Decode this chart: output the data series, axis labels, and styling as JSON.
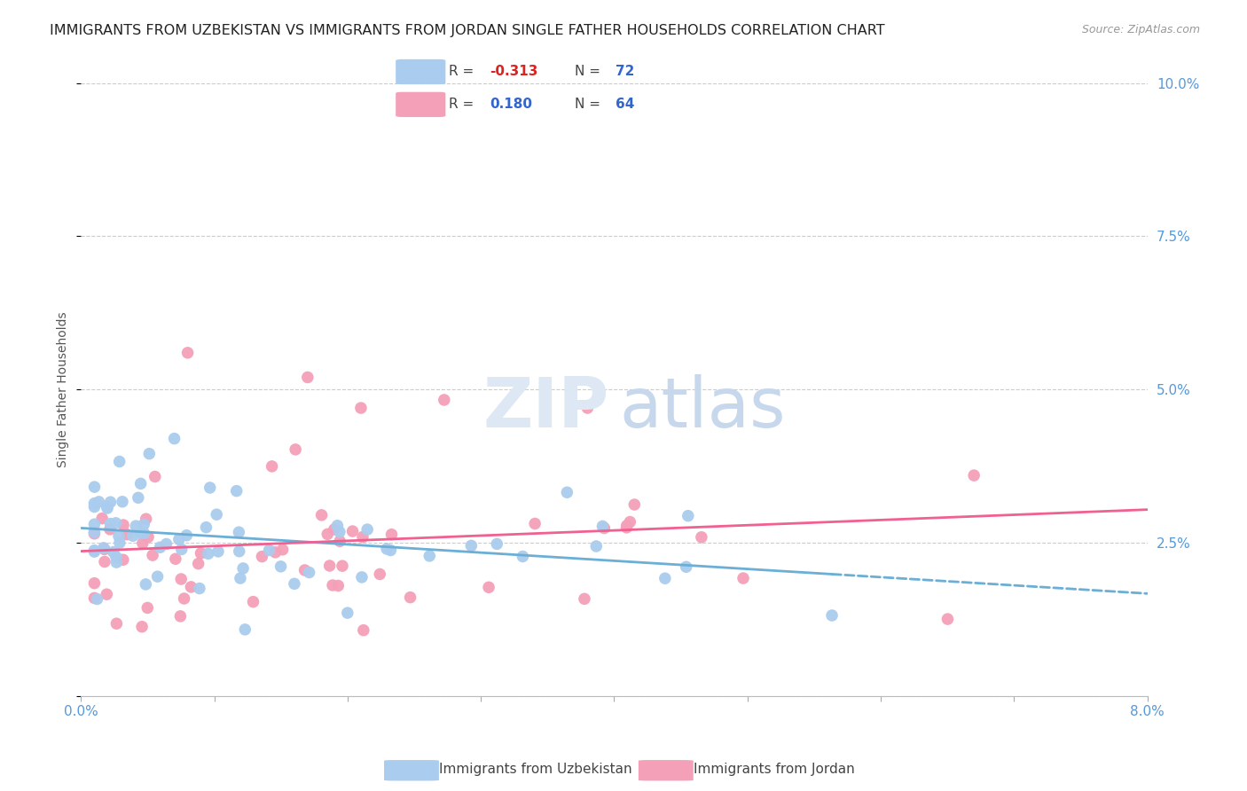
{
  "title": "IMMIGRANTS FROM UZBEKISTAN VS IMMIGRANTS FROM JORDAN SINGLE FATHER HOUSEHOLDS CORRELATION CHART",
  "source": "Source: ZipAtlas.com",
  "ylabel": "Single Father Households",
  "yticks": [
    0.0,
    0.025,
    0.05,
    0.075,
    0.1
  ],
  "ytick_labels": [
    "",
    "2.5%",
    "5.0%",
    "7.5%",
    "10.0%"
  ],
  "xlim": [
    0.0,
    0.08
  ],
  "ylim": [
    0.0,
    0.1
  ],
  "legend_R1": "-0.313",
  "legend_N1": "72",
  "legend_R2": "0.180",
  "legend_N2": "64",
  "line1_color": "#6baed6",
  "line2_color": "#f06090",
  "scatter1_color": "#aaccee",
  "scatter2_color": "#f4a0b8",
  "background_color": "#ffffff",
  "grid_color": "#cccccc",
  "title_color": "#222222",
  "axis_tick_color": "#5599dd",
  "title_fontsize": 11.5,
  "source_fontsize": 9,
  "legend_series1_label": "Immigrants from Uzbekistan",
  "legend_series2_label": "Immigrants from Jordan"
}
